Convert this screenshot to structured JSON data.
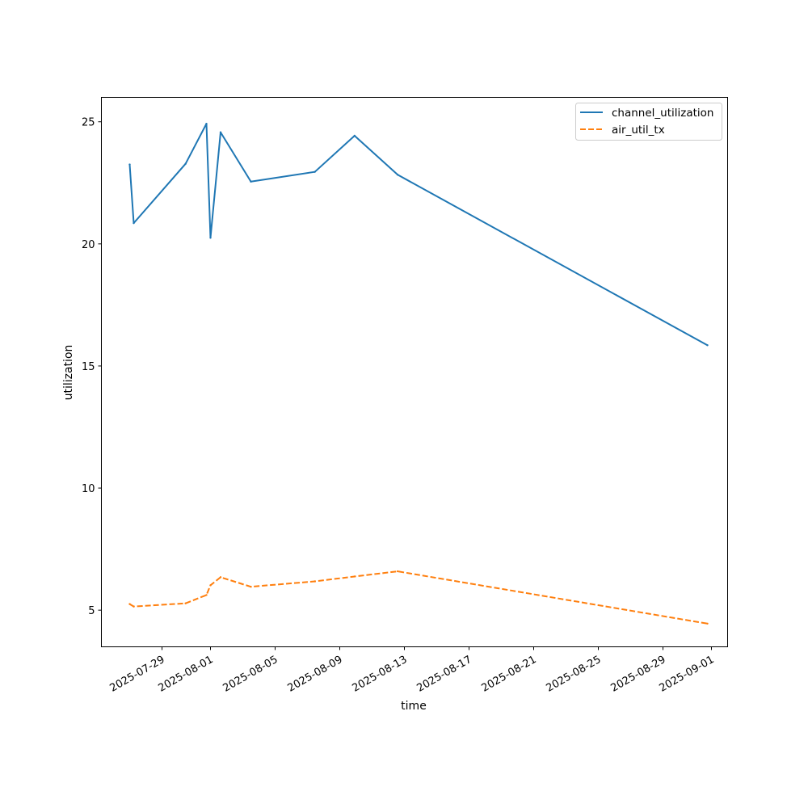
{
  "chart_data": {
    "type": "line",
    "xlabel": "time",
    "ylabel": "utilization",
    "ylim": [
      3.5,
      26
    ],
    "xlim": [
      "2025-07-25T06:00",
      "2025-09-02T00:00"
    ],
    "x_ticks": [
      "2025-07-29",
      "2025-08-01",
      "2025-08-05",
      "2025-08-09",
      "2025-08-13",
      "2025-08-17",
      "2025-08-21",
      "2025-08-25",
      "2025-08-29",
      "2025-09-01"
    ],
    "y_ticks": [
      5,
      10,
      15,
      20,
      25
    ],
    "legend_position": "top-right",
    "grid": false,
    "series": [
      {
        "name": "channel_utilization",
        "color": "#1f77b4",
        "style": "solid",
        "points": [
          {
            "x": "2025-07-27T00:00",
            "y": 23.25
          },
          {
            "x": "2025-07-27T06:00",
            "y": 20.85
          },
          {
            "x": "2025-07-30T11:00",
            "y": 23.28
          },
          {
            "x": "2025-07-31T18:00",
            "y": 24.92
          },
          {
            "x": "2025-08-01T00:00",
            "y": 20.25
          },
          {
            "x": "2025-08-01T15:00",
            "y": 24.57
          },
          {
            "x": "2025-08-03T12:00",
            "y": 22.55
          },
          {
            "x": "2025-08-07T11:00",
            "y": 22.95
          },
          {
            "x": "2025-08-09T22:00",
            "y": 24.43
          },
          {
            "x": "2025-08-12T14:00",
            "y": 22.83
          },
          {
            "x": "2025-08-31T18:00",
            "y": 15.85
          }
        ]
      },
      {
        "name": "air_util_tx",
        "color": "#ff7f0e",
        "style": "dashed",
        "points": [
          {
            "x": "2025-07-27T00:00",
            "y": 5.25
          },
          {
            "x": "2025-07-27T06:00",
            "y": 5.15
          },
          {
            "x": "2025-07-30T11:00",
            "y": 5.28
          },
          {
            "x": "2025-07-31T18:00",
            "y": 5.62
          },
          {
            "x": "2025-08-01T00:00",
            "y": 6.02
          },
          {
            "x": "2025-08-01T15:00",
            "y": 6.35
          },
          {
            "x": "2025-08-03T12:00",
            "y": 5.96
          },
          {
            "x": "2025-08-07T11:00",
            "y": 6.18
          },
          {
            "x": "2025-08-09T22:00",
            "y": 6.38
          },
          {
            "x": "2025-08-12T14:00",
            "y": 6.59
          },
          {
            "x": "2025-08-31T18:00",
            "y": 4.45
          }
        ]
      }
    ]
  }
}
